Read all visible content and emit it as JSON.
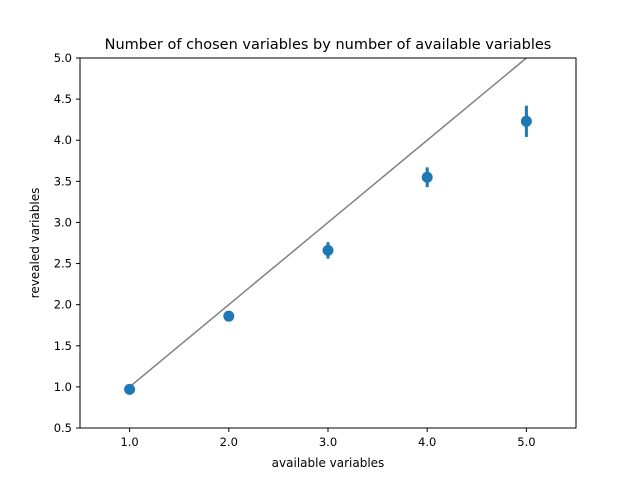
{
  "chart_data": {
    "type": "scatter",
    "title": "Number of chosen variables by number of available variables",
    "xlabel": "available variables",
    "ylabel": "revealed variables",
    "xlim": [
      0.5,
      5.5
    ],
    "ylim": [
      0.5,
      5.0
    ],
    "x_ticks": [
      {
        "value": 1.0,
        "label": "1.0"
      },
      {
        "value": 2.0,
        "label": "2.0"
      },
      {
        "value": 3.0,
        "label": "3.0"
      },
      {
        "value": 4.0,
        "label": "4.0"
      },
      {
        "value": 5.0,
        "label": "5.0"
      }
    ],
    "y_ticks": [
      {
        "value": 0.5,
        "label": "0.5"
      },
      {
        "value": 1.0,
        "label": "1.0"
      },
      {
        "value": 1.5,
        "label": "1.5"
      },
      {
        "value": 2.0,
        "label": "2.0"
      },
      {
        "value": 2.5,
        "label": "2.5"
      },
      {
        "value": 3.0,
        "label": "3.0"
      },
      {
        "value": 3.5,
        "label": "3.5"
      },
      {
        "value": 4.0,
        "label": "4.0"
      },
      {
        "value": 4.5,
        "label": "4.5"
      },
      {
        "value": 5.0,
        "label": "5.0"
      }
    ],
    "points": [
      {
        "x": 1,
        "y": 0.97,
        "err_low": 0.95,
        "err_high": 0.99
      },
      {
        "x": 2,
        "y": 1.86,
        "err_low": 1.84,
        "err_high": 1.88
      },
      {
        "x": 3,
        "y": 2.66,
        "err_low": 2.56,
        "err_high": 2.76
      },
      {
        "x": 4,
        "y": 3.55,
        "err_low": 3.43,
        "err_high": 3.67
      },
      {
        "x": 5,
        "y": 4.23,
        "err_low": 4.04,
        "err_high": 4.42
      }
    ],
    "reference_line": {
      "x": [
        1,
        5
      ],
      "y": [
        1,
        5
      ]
    },
    "grid": false,
    "colors": {
      "points": "#1f77b4",
      "reference_line": "#808080"
    }
  }
}
